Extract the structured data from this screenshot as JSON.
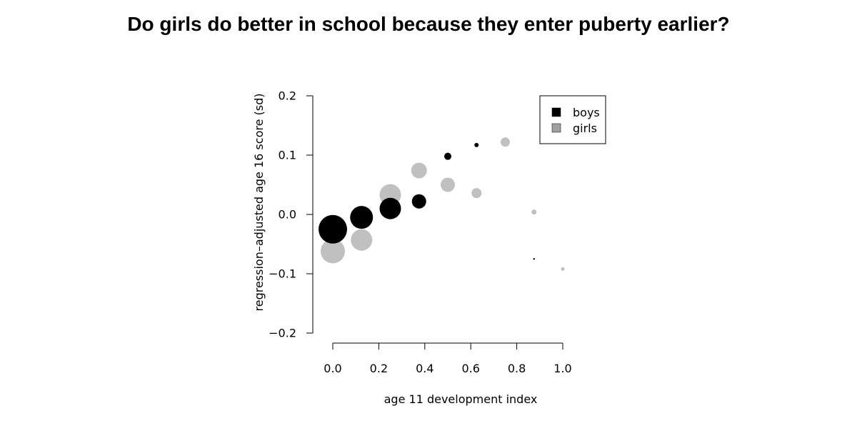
{
  "chart_data": {
    "type": "scatter",
    "title": "Do girls do better in school because they enter puberty earlier?",
    "xlabel": "age 11 development index",
    "ylabel": "regression–adjusted age 16 score (sd)",
    "xlim": [
      0.0,
      1.0
    ],
    "ylim": [
      -0.2,
      0.2
    ],
    "x_ticks": [
      0.0,
      0.2,
      0.4,
      0.6,
      0.8,
      1.0
    ],
    "x_tick_labels": [
      "0.0",
      "0.2",
      "0.4",
      "0.6",
      "0.8",
      "1.0"
    ],
    "y_ticks": [
      -0.2,
      -0.1,
      0.0,
      0.1,
      0.2
    ],
    "y_tick_labels": [
      "−0.2",
      "−0.1",
      "0.0",
      "0.1",
      "0.2"
    ],
    "grid": false,
    "legend": {
      "placement": "top-right",
      "boxed": true
    },
    "series": [
      {
        "name": "boys",
        "color": "#000000",
        "points": [
          {
            "x": 0.0,
            "y": -0.025,
            "size": 20
          },
          {
            "x": 0.125,
            "y": -0.005,
            "size": 16
          },
          {
            "x": 0.25,
            "y": 0.01,
            "size": 15
          },
          {
            "x": 0.375,
            "y": 0.022,
            "size": 10
          },
          {
            "x": 0.5,
            "y": 0.098,
            "size": 5
          },
          {
            "x": 0.625,
            "y": 0.117,
            "size": 3
          },
          {
            "x": 0.875,
            "y": -0.075,
            "size": 1.2
          }
        ]
      },
      {
        "name": "girls",
        "color": "#c0c0c0",
        "points": [
          {
            "x": 0.0,
            "y": -0.062,
            "size": 17
          },
          {
            "x": 0.125,
            "y": -0.043,
            "size": 15
          },
          {
            "x": 0.25,
            "y": 0.033,
            "size": 15
          },
          {
            "x": 0.375,
            "y": 0.074,
            "size": 11
          },
          {
            "x": 0.5,
            "y": 0.05,
            "size": 10
          },
          {
            "x": 0.625,
            "y": 0.036,
            "size": 7
          },
          {
            "x": 0.75,
            "y": 0.122,
            "size": 6.5
          },
          {
            "x": 0.875,
            "y": 0.004,
            "size": 3.5
          },
          {
            "x": 1.0,
            "y": -0.092,
            "size": 2.5
          }
        ]
      }
    ]
  }
}
